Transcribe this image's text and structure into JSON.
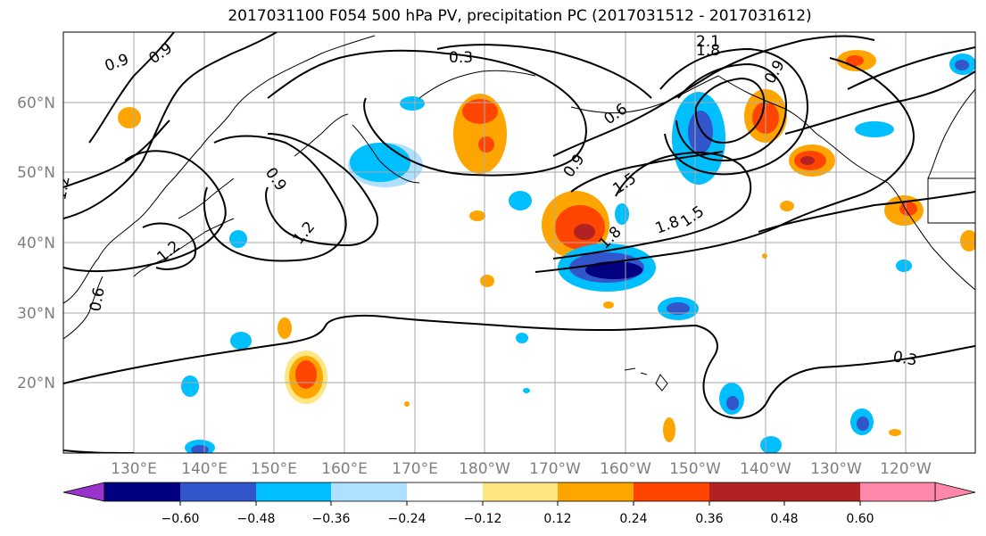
{
  "title": "2017031100 F054 500 hPa PV, precipitation PC (2017031512 - 2017031612)",
  "map": {
    "lat_labels": [
      "60°N",
      "50°N",
      "40°N",
      "30°N",
      "20°N"
    ],
    "lon_labels": [
      "130°E",
      "140°E",
      "150°E",
      "160°E",
      "170°E",
      "180°W",
      "170°W",
      "160°W",
      "150°W",
      "140°W",
      "130°W",
      "120°W"
    ],
    "contour_labels": [
      "0.9",
      "0.9",
      "0.3",
      "2.1",
      "1.8",
      "0.9",
      "1.5",
      "1.8",
      "1.5",
      "1.2",
      "1.2",
      "1.2",
      "0.9",
      "0.3",
      "1.8",
      "0.6",
      "0.9",
      "0.6"
    ],
    "gridlines": true,
    "projection": "cylindrical",
    "lon_range": [
      "120°E",
      "110°W"
    ],
    "lat_range": [
      "10°N",
      "70°N"
    ]
  },
  "colorbar": {
    "ticks": [
      "−0.60",
      "−0.48",
      "−0.36",
      "−0.24",
      "−0.12",
      "0.12",
      "0.24",
      "0.36",
      "0.48",
      "0.60"
    ],
    "colors": [
      "#9933cc",
      "#000080",
      "#3355cc",
      "#00bfff",
      "#b0e0ff",
      "#ffffff",
      "#ffe680",
      "#ffa500",
      "#ff4500",
      "#b22222",
      "#ff88aa"
    ],
    "extend": "both"
  }
}
